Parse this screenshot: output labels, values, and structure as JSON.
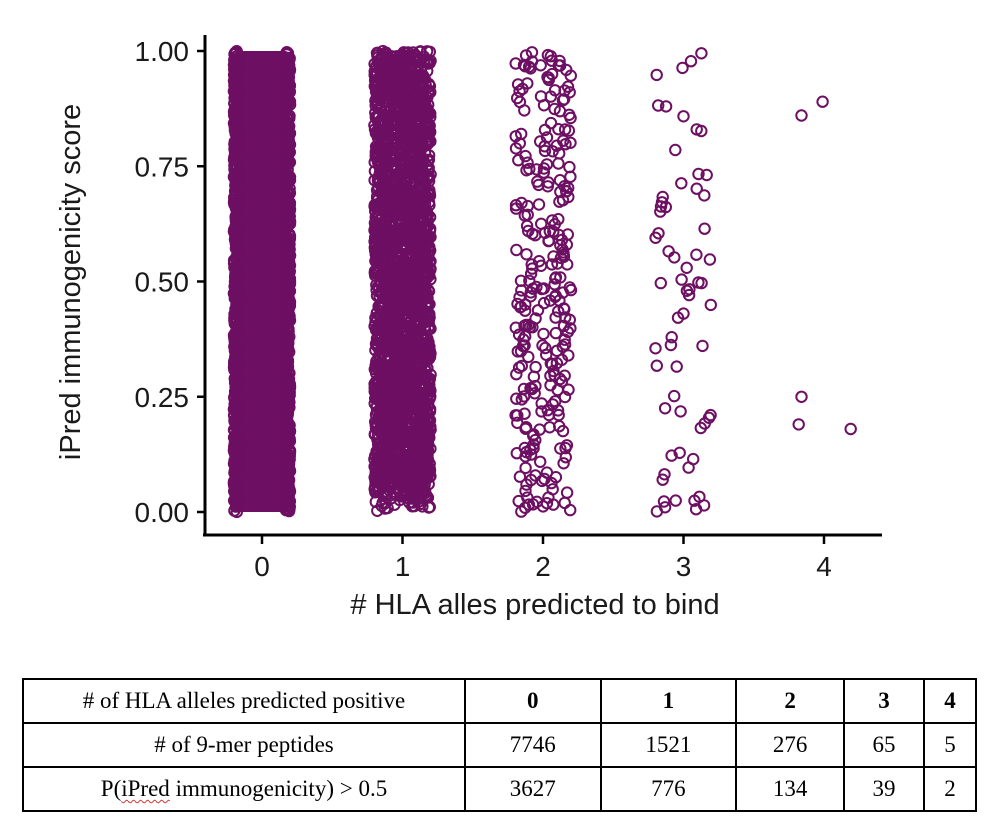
{
  "chart_data": {
    "type": "scatter",
    "xlabel": "# HLA alles predicted to bind",
    "ylabel": "iPred immunogenicity score",
    "x_ticks": [
      0,
      1,
      2,
      3,
      4
    ],
    "y_ticks": [
      0.0,
      0.25,
      0.5,
      0.75,
      1.0
    ],
    "y_tick_labels": [
      "0.00",
      "0.25",
      "0.50",
      "0.75",
      "1.00"
    ],
    "xlim": [
      -0.2,
      4.25
    ],
    "ylim": [
      0,
      1
    ],
    "jitter_width": 0.2,
    "point_color": "#6d0f62",
    "marker": "open-circle",
    "grid": false,
    "groups": [
      {
        "x": 0,
        "n": 7746,
        "density": "solid"
      },
      {
        "x": 1,
        "n": 1521,
        "density": "dense"
      },
      {
        "x": 2,
        "n": 276
      },
      {
        "x": 3,
        "n": 65
      },
      {
        "x": 4,
        "n": 5,
        "points": [
          [
            3.84,
            0.86
          ],
          [
            3.99,
            0.89
          ],
          [
            3.84,
            0.25
          ],
          [
            3.82,
            0.19
          ],
          [
            4.19,
            0.18
          ]
        ]
      }
    ]
  },
  "table": {
    "header": {
      "label": "# of HLA alleles predicted positive",
      "cols": [
        "0",
        "1",
        "2",
        "3",
        "4"
      ]
    },
    "rows": [
      {
        "label": "# of 9-mer peptides",
        "values": [
          "7746",
          "1521",
          "276",
          "65",
          "5"
        ]
      },
      {
        "label_prefix": "P(",
        "label_squiggle": "iPred",
        "label_suffix": " immunogenicity) > 0.5",
        "values": [
          "3627",
          "776",
          "134",
          "39",
          "2"
        ]
      }
    ]
  }
}
